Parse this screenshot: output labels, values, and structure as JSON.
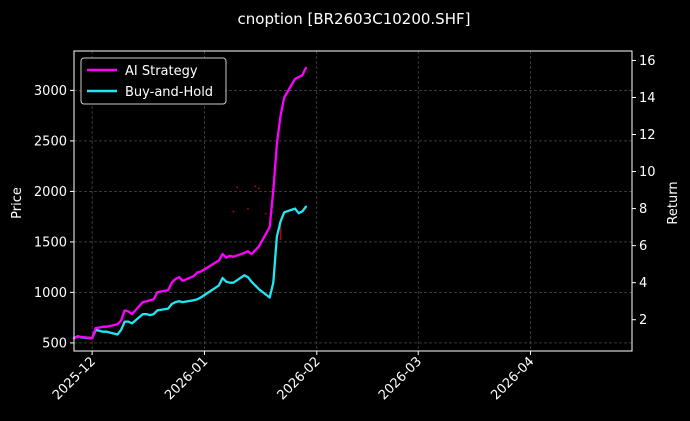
{
  "chart_data": {
    "type": "line",
    "title": "cnoption [BR2603C10200.SHF]",
    "ylabel_left": "Price",
    "ylabel_right": "Return",
    "x_ticks": [
      "2025-12",
      "2026-01",
      "2026-02",
      "2026-03",
      "2026-04"
    ],
    "y_left_ticks": [
      500,
      1000,
      1500,
      2000,
      2500,
      3000
    ],
    "y_right_ticks": [
      2,
      4,
      6,
      8,
      10,
      12,
      14,
      16
    ],
    "xlim": [
      "2025-11-26",
      "2026-04-29"
    ],
    "ylim_left": [
      420,
      3390
    ],
    "ylim_right": [
      0.31,
      16.51
    ],
    "grid": true,
    "legend_position": "top-left",
    "colors": {
      "background": "#000000",
      "grid": "#5a5a5a",
      "ai_strategy": "#ff00ff",
      "buy_and_hold": "#22e6f2",
      "price_marks": "#c00000"
    },
    "series": [
      {
        "name": "AI Strategy",
        "axis": "right",
        "x": [
          "2025-11-26",
          "2025-11-27",
          "2025-11-28",
          "2025-12-01",
          "2025-12-02",
          "2025-12-03",
          "2025-12-04",
          "2025-12-05",
          "2025-12-08",
          "2025-12-09",
          "2025-12-10",
          "2025-12-11",
          "2025-12-12",
          "2025-12-15",
          "2025-12-16",
          "2025-12-17",
          "2025-12-18",
          "2025-12-19",
          "2025-12-22",
          "2025-12-23",
          "2025-12-24",
          "2025-12-25",
          "2025-12-26",
          "2025-12-29",
          "2025-12-30",
          "2025-12-31",
          "2026-01-05",
          "2026-01-06",
          "2026-01-07",
          "2026-01-08",
          "2026-01-09",
          "2026-01-12",
          "2026-01-13",
          "2026-01-14",
          "2026-01-15",
          "2026-01-16",
          "2026-01-19",
          "2026-01-20",
          "2026-01-21",
          "2026-01-22",
          "2026-01-23",
          "2026-01-26",
          "2026-01-27",
          "2026-01-28",
          "2026-01-29"
        ],
        "values": [
          1.0,
          1.07,
          1.07,
          1.0,
          1.55,
          1.58,
          1.62,
          1.62,
          1.75,
          1.95,
          2.5,
          2.45,
          2.3,
          2.95,
          3.0,
          3.05,
          3.1,
          3.48,
          3.6,
          4.0,
          4.2,
          4.3,
          4.1,
          4.35,
          4.55,
          4.6,
          5.2,
          5.55,
          5.35,
          5.45,
          5.4,
          5.6,
          5.7,
          5.55,
          5.75,
          5.95,
          7.0,
          9.0,
          11.5,
          13.0,
          14.0,
          15.0,
          15.1,
          15.2,
          15.6
        ]
      },
      {
        "name": "Buy-and-Hold",
        "axis": "right",
        "x": [
          "2025-11-26",
          "2025-11-27",
          "2025-11-28",
          "2025-12-01",
          "2025-12-02",
          "2025-12-03",
          "2025-12-04",
          "2025-12-05",
          "2025-12-08",
          "2025-12-09",
          "2025-12-10",
          "2025-12-11",
          "2025-12-12",
          "2025-12-15",
          "2025-12-16",
          "2025-12-17",
          "2025-12-18",
          "2025-12-19",
          "2025-12-22",
          "2025-12-23",
          "2025-12-24",
          "2025-12-25",
          "2025-12-26",
          "2025-12-29",
          "2025-12-30",
          "2025-12-31",
          "2026-01-05",
          "2026-01-06",
          "2026-01-07",
          "2026-01-08",
          "2026-01-09",
          "2026-01-12",
          "2026-01-13",
          "2026-01-14",
          "2026-01-15",
          "2026-01-16",
          "2026-01-19",
          "2026-01-20",
          "2026-01-21",
          "2026-01-22",
          "2026-01-23",
          "2026-01-26",
          "2026-01-27",
          "2026-01-28",
          "2026-01-29"
        ],
        "values": [
          1.0,
          1.1,
          1.05,
          1.0,
          1.45,
          1.4,
          1.35,
          1.35,
          1.2,
          1.45,
          1.9,
          1.9,
          1.8,
          2.3,
          2.3,
          2.25,
          2.3,
          2.5,
          2.6,
          2.85,
          2.95,
          3.0,
          2.95,
          3.05,
          3.1,
          3.2,
          3.85,
          4.25,
          4.05,
          4.0,
          4.0,
          4.4,
          4.3,
          4.05,
          3.85,
          3.65,
          3.2,
          4.0,
          6.5,
          7.3,
          7.8,
          8.0,
          7.75,
          7.85,
          8.1
        ]
      }
    ],
    "price_marks": {
      "axis": "left",
      "points": [
        {
          "x": "2026-01-09",
          "y": 1800
        },
        {
          "x": "2026-01-10",
          "y": 2040
        },
        {
          "x": "2026-01-13",
          "y": 1830
        },
        {
          "x": "2026-01-15",
          "y": 2050
        },
        {
          "x": "2026-01-16",
          "y": 2030
        },
        {
          "x": "2026-01-18",
          "y": 1780
        }
      ],
      "vertical_line": {
        "x": "2026-01-22",
        "y_from": 1520,
        "y_to": 1700
      }
    }
  }
}
